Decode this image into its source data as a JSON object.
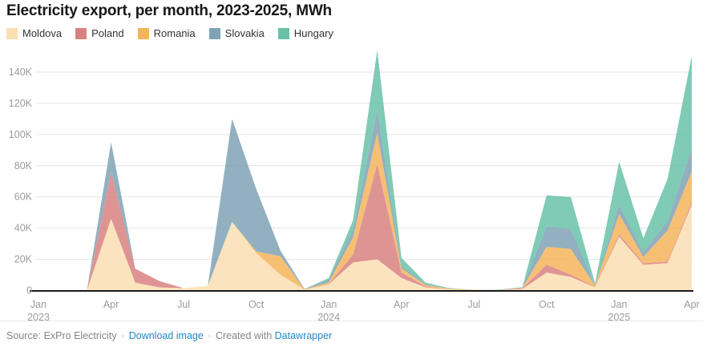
{
  "title": "Electricity export, per month, 2023-2025, MWh",
  "legend": [
    {
      "id": "moldova",
      "label": "Moldova",
      "color": "#FADFB1"
    },
    {
      "id": "poland",
      "label": "Poland",
      "color": "#D98181"
    },
    {
      "id": "romania",
      "label": "Romania",
      "color": "#F5B45C"
    },
    {
      "id": "slovakia",
      "label": "Slovakia",
      "color": "#7FA2B5"
    },
    {
      "id": "hungary",
      "label": "Hungary",
      "color": "#69C2A8"
    }
  ],
  "chart_data": {
    "type": "area",
    "stacked": true,
    "unit": "MWh",
    "title": "Electricity export, per month, 2023-2025, MWh",
    "xlabel": "",
    "ylabel": "MWh",
    "ylim": [
      0,
      154000
    ],
    "grid": true,
    "legend_position": "top",
    "months": [
      "Jan 2023",
      "Feb 2023",
      "Mar 2023",
      "Apr 2023",
      "May 2023",
      "Jun 2023",
      "Jul 2023",
      "Aug 2023",
      "Sep 2023",
      "Oct 2023",
      "Nov 2023",
      "Dec 2023",
      "Jan 2024",
      "Feb 2024",
      "Mar 2024",
      "Apr 2024",
      "May 2024",
      "Jun 2024",
      "Jul 2024",
      "Aug 2024",
      "Sep 2024",
      "Oct 2024",
      "Nov 2024",
      "Dec 2024",
      "Jan 2025",
      "Feb 2025",
      "Mar 2025",
      "Apr 2025"
    ],
    "series": [
      {
        "name": "Moldova",
        "color": "#FADFB1",
        "values": [
          0,
          0,
          0,
          46000,
          5000,
          2000,
          1500,
          3000,
          44000,
          24000,
          10000,
          500,
          4000,
          18000,
          20000,
          8000,
          2000,
          700,
          300,
          300,
          1000,
          11500,
          8700,
          2000,
          34500,
          16500,
          17500,
          55000
        ]
      },
      {
        "name": "Poland",
        "color": "#D98181",
        "values": [
          0,
          0,
          0,
          30000,
          9000,
          4000,
          0,
          0,
          0,
          0,
          0,
          0,
          300,
          5000,
          61000,
          3600,
          500,
          0,
          0,
          0,
          500,
          5000,
          1500,
          200,
          1500,
          1000,
          1000,
          1500
        ]
      },
      {
        "name": "Romania",
        "color": "#F5B45C",
        "values": [
          0,
          0,
          0,
          0,
          0,
          0,
          0,
          0,
          0,
          1000,
          12000,
          200,
          1000,
          11000,
          20000,
          2600,
          1000,
          500,
          200,
          0,
          300,
          11500,
          16500,
          1000,
          13000,
          4000,
          20000,
          20000
        ]
      },
      {
        "name": "Slovakia",
        "color": "#7FA2B5",
        "values": [
          0,
          0,
          0,
          19000,
          0,
          0,
          0,
          0,
          66000,
          40000,
          3500,
          300,
          2000,
          5000,
          15000,
          1500,
          500,
          0,
          0,
          0,
          200,
          13000,
          12800,
          400,
          6000,
          3000,
          6000,
          15000
        ]
      },
      {
        "name": "Hungary",
        "color": "#69C2A8",
        "values": [
          0,
          0,
          0,
          0,
          0,
          0,
          0,
          0,
          0,
          0,
          0,
          0,
          700,
          6000,
          38000,
          5300,
          1000,
          300,
          0,
          200,
          200,
          20000,
          20500,
          1000,
          27500,
          9000,
          27000,
          59000
        ]
      }
    ],
    "y_ticks": [
      {
        "value": 0,
        "label": "0"
      },
      {
        "value": 20000,
        "label": "20K"
      },
      {
        "value": 40000,
        "label": "40K"
      },
      {
        "value": 60000,
        "label": "60K"
      },
      {
        "value": 80000,
        "label": "80K"
      },
      {
        "value": 100000,
        "label": "100K"
      },
      {
        "value": 120000,
        "label": "120K"
      },
      {
        "value": 140000,
        "label": "140K"
      }
    ],
    "x_ticks": [
      {
        "month_index": 0,
        "label": "Jan",
        "year": "2023"
      },
      {
        "month_index": 3,
        "label": "Apr"
      },
      {
        "month_index": 6,
        "label": "Jul"
      },
      {
        "month_index": 9,
        "label": "Oct"
      },
      {
        "month_index": 12,
        "label": "Jan",
        "year": "2024"
      },
      {
        "month_index": 15,
        "label": "Apr"
      },
      {
        "month_index": 18,
        "label": "Jul"
      },
      {
        "month_index": 21,
        "label": "Oct"
      },
      {
        "month_index": 24,
        "label": "Jan",
        "year": "2025"
      },
      {
        "month_index": 27,
        "label": "Apr"
      }
    ]
  },
  "footer": {
    "source_label": "Source:",
    "source": "ExPro Electricity",
    "separator": "·",
    "download_link": "Download image",
    "created_with": "Created with",
    "brand_link": "Datawrapper",
    "link_color": "#2287C8"
  },
  "colors": {
    "axis_text": "#9B9B9B",
    "grid": "#E4E4E4",
    "baseline": "#1A1A1A",
    "area_opacity": "0.85"
  }
}
